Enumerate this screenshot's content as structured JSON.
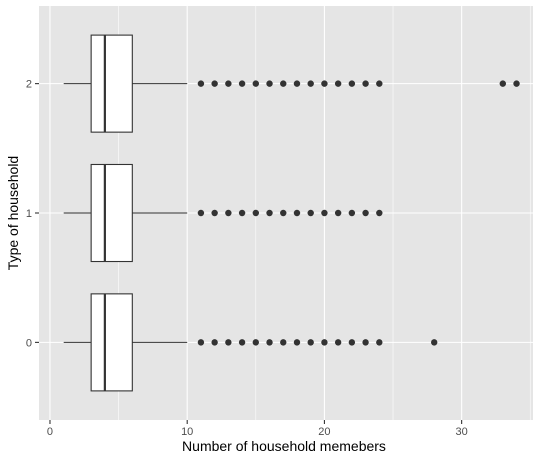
{
  "chart_data": {
    "type": "boxplot",
    "orientation": "horizontal",
    "xlabel": "Number of household memebers",
    "ylabel": "Type of household",
    "xlim": [
      -0.8,
      35.2
    ],
    "x_ticks": [
      0,
      10,
      20,
      30
    ],
    "x_tick_labels": [
      "0",
      "10",
      "20",
      "30"
    ],
    "categories": [
      "0",
      "1",
      "2"
    ],
    "boxes": [
      {
        "category": "0",
        "whisker_low": 1,
        "q1": 3,
        "median": 4,
        "q3": 6,
        "whisker_high": 10,
        "outliers": [
          11,
          12,
          13,
          14,
          15,
          16,
          17,
          18,
          19,
          20,
          21,
          22,
          23,
          24,
          28
        ]
      },
      {
        "category": "1",
        "whisker_low": 1,
        "q1": 3,
        "median": 4,
        "q3": 6,
        "whisker_high": 10,
        "outliers": [
          11,
          12,
          13,
          14,
          15,
          16,
          17,
          18,
          19,
          20,
          21,
          22,
          23,
          24
        ]
      },
      {
        "category": "2",
        "whisker_low": 1,
        "q1": 3,
        "median": 4,
        "q3": 6,
        "whisker_high": 10,
        "outliers": [
          11,
          12,
          13,
          14,
          15,
          16,
          17,
          18,
          19,
          20,
          21,
          22,
          23,
          24,
          33,
          34
        ]
      }
    ],
    "grid": true,
    "legend": "none",
    "colors": {
      "panel_background": "#e5e5e5",
      "grid": "#ffffff",
      "box_fill": "#ffffff",
      "box_stroke": "#333333",
      "outlier": "#333333"
    }
  }
}
